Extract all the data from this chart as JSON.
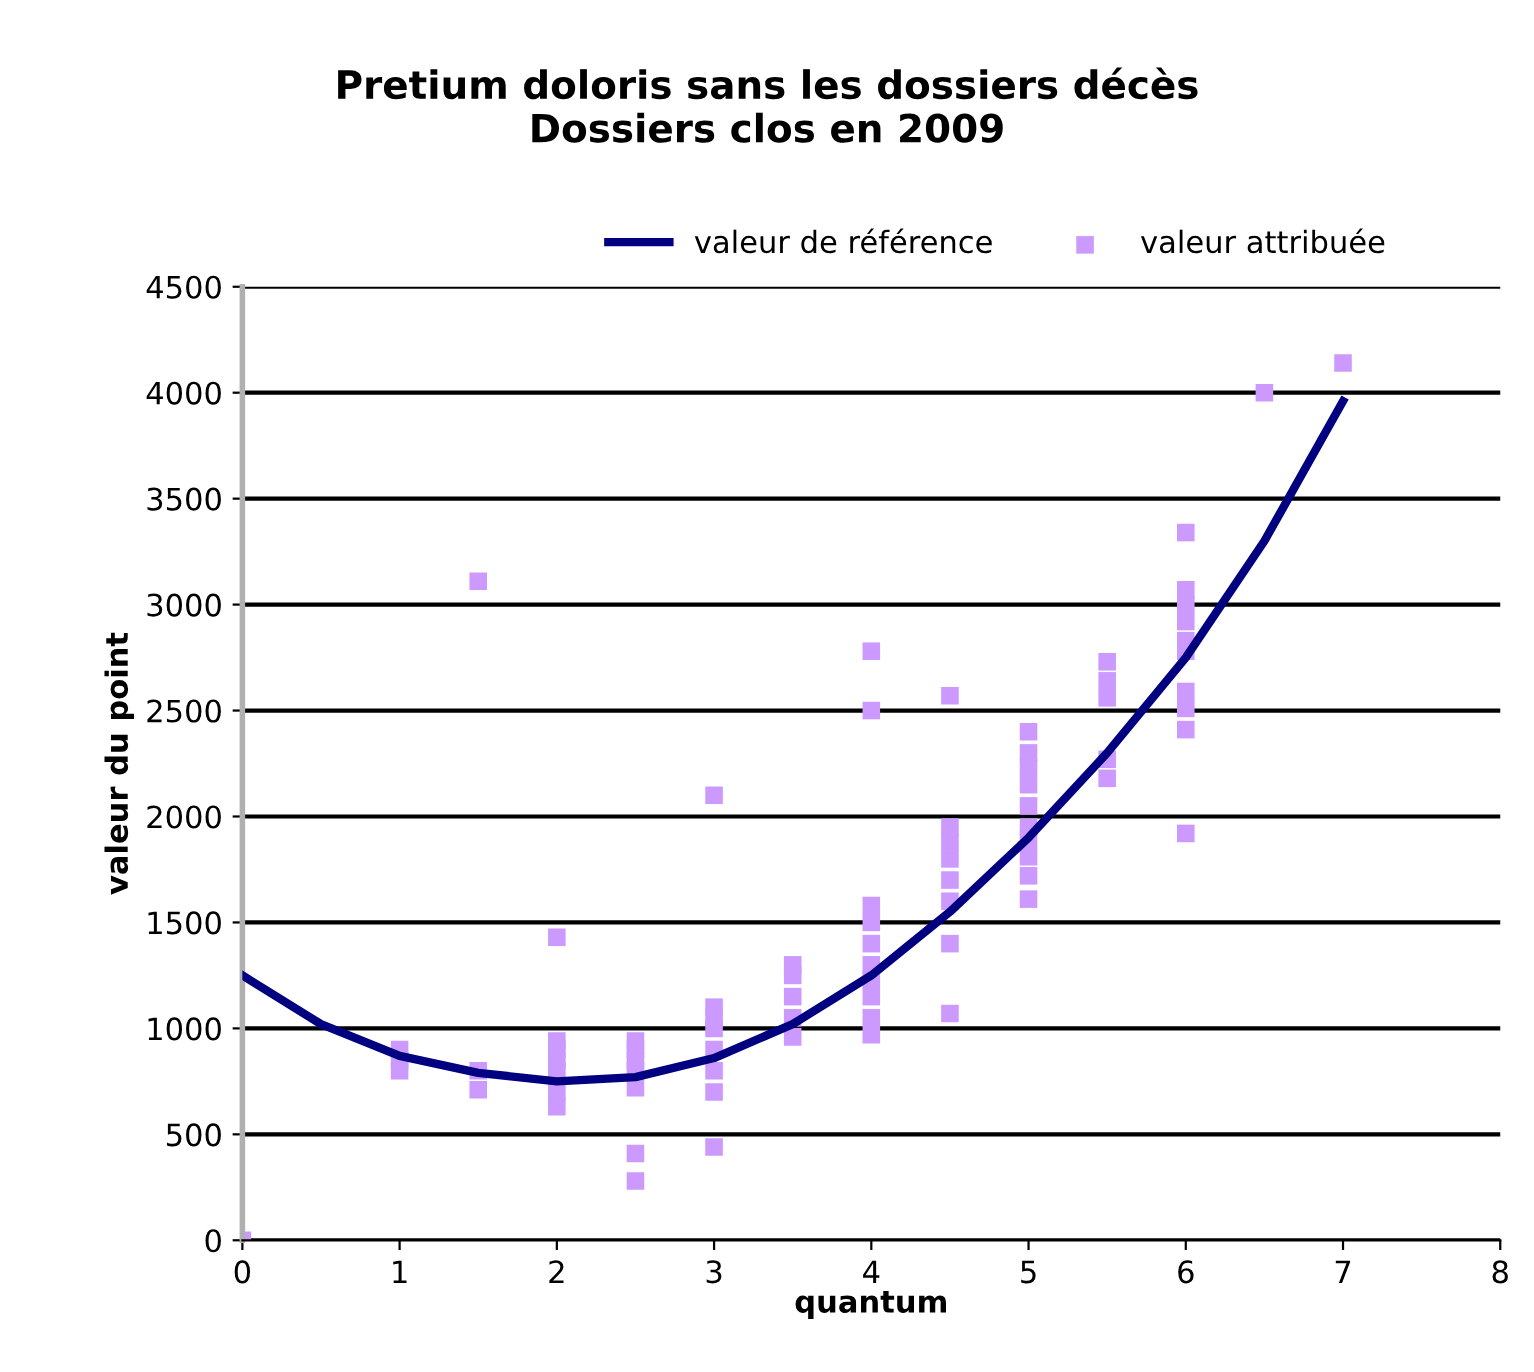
{
  "chart_data": {
    "type": "scatter",
    "title": "Pretium doloris sans les dossiers décès\nDossiers clos en 2009",
    "xlabel": "quantum",
    "ylabel": "valeur du point",
    "xlim": [
      0,
      8
    ],
    "xticks": [
      0,
      1,
      2,
      3,
      4,
      5,
      6,
      7,
      8
    ],
    "ylim": [
      0,
      4500
    ],
    "yticks": [
      0,
      500,
      1000,
      1500,
      2000,
      2500,
      3000,
      3500,
      4000,
      4500
    ],
    "grid": "y",
    "legend": "top",
    "marker": "square",
    "series": [
      {
        "name": "valeur de référence",
        "type": "line",
        "color": "#000080",
        "marker": "none",
        "x": [
          0,
          0.5,
          1,
          1.5,
          2,
          2.5,
          3,
          3.5,
          4,
          4.5,
          5,
          5.5,
          6,
          6.5,
          7
        ],
        "values": [
          1250,
          1020,
          870,
          790,
          750,
          770,
          860,
          1020,
          1250,
          1550,
          1900,
          2300,
          2750,
          3300,
          3960
        ]
      },
      {
        "name": "valeur attribuée",
        "color": "#cc99ff",
        "x": [
          0,
          1,
          1,
          1,
          1.5,
          1.5,
          1.5,
          2,
          2,
          2,
          2,
          2,
          2,
          2,
          2.5,
          2.5,
          2.5,
          2.5,
          2.5,
          2.5,
          2.5,
          3,
          3,
          3,
          3,
          3,
          3,
          3,
          3,
          3.5,
          3.5,
          3.5,
          3.5,
          3.5,
          4,
          4,
          4,
          4,
          4,
          4,
          4,
          4,
          4,
          4,
          4.5,
          4.5,
          4.5,
          4.5,
          4.5,
          4.5,
          4.5,
          4.5,
          5,
          5,
          5,
          5,
          5,
          5,
          5,
          5,
          5,
          5,
          5.5,
          5.5,
          5.5,
          5.5,
          5.5,
          6,
          6,
          6,
          6,
          6,
          6,
          6,
          6,
          6,
          6,
          6.5,
          7
        ],
        "values": [
          0,
          800,
          850,
          900,
          3110,
          800,
          710,
          1430,
          630,
          700,
          800,
          850,
          900,
          940,
          720,
          800,
          850,
          900,
          940,
          410,
          280,
          2100,
          1100,
          700,
          800,
          900,
          1000,
          1050,
          440,
          960,
          1050,
          1150,
          1250,
          1300,
          2780,
          2500,
          1580,
          1500,
          1400,
          1300,
          1230,
          1150,
          1050,
          970,
          2570,
          1950,
          1880,
          1800,
          1700,
          1600,
          1400,
          1070,
          2400,
          2300,
          2230,
          2150,
          2050,
          1950,
          1890,
          1810,
          1720,
          1610,
          2730,
          2640,
          2560,
          2270,
          2180,
          3340,
          3070,
          3000,
          2920,
          2830,
          2780,
          2590,
          2510,
          2410,
          1920,
          4000,
          4140
        ]
      }
    ]
  }
}
